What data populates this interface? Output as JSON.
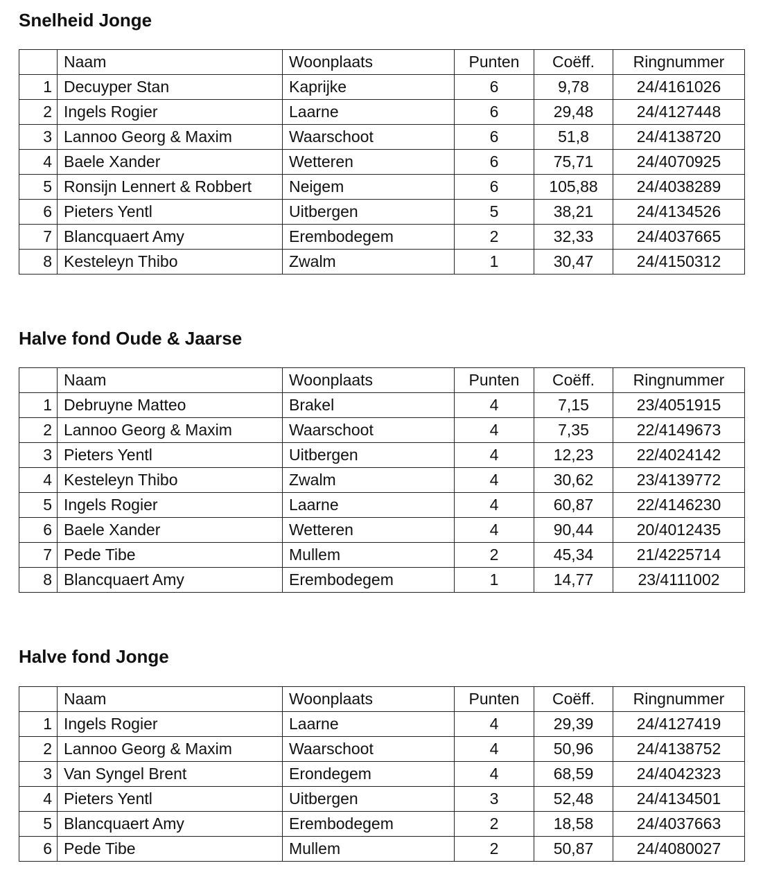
{
  "headers": {
    "rank": "",
    "naam": "Naam",
    "woonplaats": "Woonplaats",
    "punten": "Punten",
    "coeff": "Coëff.",
    "ringnummer": "Ringnummer"
  },
  "sections": [
    {
      "title": "Snelheid Jonge",
      "rows": [
        [
          "1",
          "Decuyper Stan",
          "Kaprijke",
          "6",
          "9,78",
          "24/4161026"
        ],
        [
          "2",
          "Ingels Rogier",
          "Laarne",
          "6",
          "29,48",
          "24/4127448"
        ],
        [
          "3",
          "Lannoo Georg & Maxim",
          "Waarschoot",
          "6",
          "51,8",
          "24/4138720"
        ],
        [
          "4",
          "Baele Xander",
          "Wetteren",
          "6",
          "75,71",
          "24/4070925"
        ],
        [
          "5",
          "Ronsijn Lennert & Robbert",
          "Neigem",
          "6",
          "105,88",
          "24/4038289"
        ],
        [
          "6",
          "Pieters Yentl",
          "Uitbergen",
          "5",
          "38,21",
          "24/4134526"
        ],
        [
          "7",
          "Blancquaert Amy",
          "Erembodegem",
          "2",
          "32,33",
          "24/4037665"
        ],
        [
          "8",
          "Kesteleyn Thibo",
          "Zwalm",
          "1",
          "30,47",
          "24/4150312"
        ]
      ]
    },
    {
      "title": "Halve fond Oude & Jaarse",
      "rows": [
        [
          "1",
          "Debruyne Matteo",
          "Brakel",
          "4",
          "7,15",
          "23/4051915"
        ],
        [
          "2",
          "Lannoo Georg & Maxim",
          "Waarschoot",
          "4",
          "7,35",
          "22/4149673"
        ],
        [
          "3",
          "Pieters Yentl",
          "Uitbergen",
          "4",
          "12,23",
          "22/4024142"
        ],
        [
          "4",
          "Kesteleyn Thibo",
          "Zwalm",
          "4",
          "30,62",
          "23/4139772"
        ],
        [
          "5",
          "Ingels Rogier",
          "Laarne",
          "4",
          "60,87",
          "22/4146230"
        ],
        [
          "6",
          "Baele Xander",
          "Wetteren",
          "4",
          "90,44",
          "20/4012435"
        ],
        [
          "7",
          "Pede Tibe",
          "Mullem",
          "2",
          "45,34",
          "21/4225714"
        ],
        [
          "8",
          "Blancquaert Amy",
          "Erembodegem",
          "1",
          "14,77",
          "23/4111002"
        ]
      ]
    },
    {
      "title": "Halve fond Jonge",
      "rows": [
        [
          "1",
          "Ingels Rogier",
          "Laarne",
          "4",
          "29,39",
          "24/4127419"
        ],
        [
          "2",
          "Lannoo Georg & Maxim",
          "Waarschoot",
          "4",
          "50,96",
          "24/4138752"
        ],
        [
          "3",
          "Van Syngel Brent",
          "Erondegem",
          "4",
          "68,59",
          "24/4042323"
        ],
        [
          "4",
          "Pieters Yentl",
          "Uitbergen",
          "3",
          "52,48",
          "24/4134501"
        ],
        [
          "5",
          "Blancquaert Amy",
          "Erembodegem",
          "2",
          "18,58",
          "24/4037663"
        ],
        [
          "6",
          "Pede Tibe",
          "Mullem",
          "2",
          "50,87",
          "24/4080027"
        ]
      ]
    }
  ]
}
